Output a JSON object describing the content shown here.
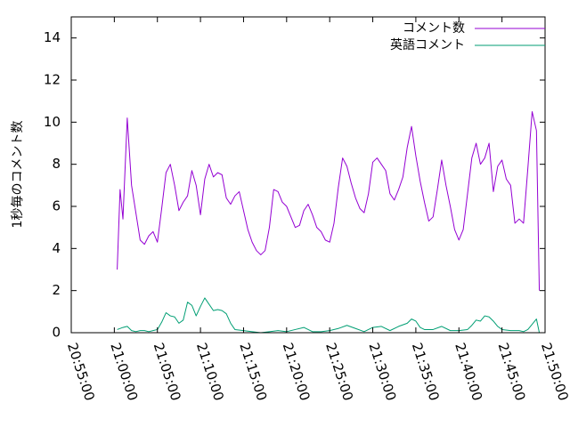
{
  "chart_data": {
    "type": "line",
    "title": "",
    "xlabel": "",
    "ylabel": "1秒毎のコメント数",
    "ylim": [
      0,
      15
    ],
    "yticks": [
      "0",
      "2",
      "4",
      "6",
      "8",
      "10",
      "12",
      "14"
    ],
    "xlim": [
      "20:55:00",
      "21:50:00"
    ],
    "xticks": [
      "20:55:00",
      "21:00:00",
      "21:05:00",
      "21:10:00",
      "21:15:00",
      "21:20:00",
      "21:25:00",
      "21:30:00",
      "21:35:00",
      "21:40:00",
      "21:45:00",
      "21:50:00"
    ],
    "grid": false,
    "legend_position": "top-right",
    "series": [
      {
        "name": "コメント数",
        "color": "#9400d3",
        "points": [
          [
            "21:00:20",
            3.0
          ],
          [
            "21:00:40",
            6.8
          ],
          [
            "21:01:00",
            5.4
          ],
          [
            "21:01:30",
            10.2
          ],
          [
            "21:02:00",
            7.0
          ],
          [
            "21:03:00",
            4.4
          ],
          [
            "21:03:30",
            4.2
          ],
          [
            "21:04:00",
            4.6
          ],
          [
            "21:04:30",
            4.8
          ],
          [
            "21:05:00",
            4.3
          ],
          [
            "21:05:30",
            5.9
          ],
          [
            "21:06:00",
            7.6
          ],
          [
            "21:06:30",
            8.0
          ],
          [
            "21:07:00",
            7.0
          ],
          [
            "21:07:30",
            5.8
          ],
          [
            "21:08:00",
            6.2
          ],
          [
            "21:08:30",
            6.5
          ],
          [
            "21:09:00",
            7.7
          ],
          [
            "21:09:30",
            7.0
          ],
          [
            "21:10:00",
            5.6
          ],
          [
            "21:10:30",
            7.3
          ],
          [
            "21:11:00",
            8.0
          ],
          [
            "21:11:30",
            7.4
          ],
          [
            "21:12:00",
            7.6
          ],
          [
            "21:12:30",
            7.5
          ],
          [
            "21:13:00",
            6.4
          ],
          [
            "21:13:30",
            6.1
          ],
          [
            "21:14:00",
            6.5
          ],
          [
            "21:14:30",
            6.7
          ],
          [
            "21:15:00",
            5.8
          ],
          [
            "21:15:30",
            4.9
          ],
          [
            "21:16:00",
            4.3
          ],
          [
            "21:16:30",
            3.9
          ],
          [
            "21:17:00",
            3.7
          ],
          [
            "21:17:30",
            3.9
          ],
          [
            "21:18:00",
            5.0
          ],
          [
            "21:18:30",
            6.8
          ],
          [
            "21:19:00",
            6.7
          ],
          [
            "21:19:30",
            6.2
          ],
          [
            "21:20:00",
            6.0
          ],
          [
            "21:20:30",
            5.5
          ],
          [
            "21:21:00",
            5.0
          ],
          [
            "21:21:30",
            5.1
          ],
          [
            "21:22:00",
            5.8
          ],
          [
            "21:22:30",
            6.1
          ],
          [
            "21:23:00",
            5.6
          ],
          [
            "21:23:30",
            5.0
          ],
          [
            "21:24:00",
            4.8
          ],
          [
            "21:24:30",
            4.4
          ],
          [
            "21:25:00",
            4.3
          ],
          [
            "21:25:30",
            5.2
          ],
          [
            "21:26:00",
            6.9
          ],
          [
            "21:26:30",
            8.3
          ],
          [
            "21:27:00",
            7.9
          ],
          [
            "21:27:30",
            7.1
          ],
          [
            "21:28:00",
            6.4
          ],
          [
            "21:28:30",
            5.9
          ],
          [
            "21:29:00",
            5.7
          ],
          [
            "21:29:30",
            6.6
          ],
          [
            "21:30:00",
            8.1
          ],
          [
            "21:30:30",
            8.3
          ],
          [
            "21:31:00",
            8.0
          ],
          [
            "21:31:30",
            7.7
          ],
          [
            "21:32:00",
            6.6
          ],
          [
            "21:32:30",
            6.3
          ],
          [
            "21:33:00",
            6.8
          ],
          [
            "21:33:30",
            7.4
          ],
          [
            "21:34:00",
            8.8
          ],
          [
            "21:34:30",
            9.8
          ],
          [
            "21:35:00",
            8.4
          ],
          [
            "21:35:30",
            7.2
          ],
          [
            "21:36:00",
            6.2
          ],
          [
            "21:36:30",
            5.3
          ],
          [
            "21:37:00",
            5.5
          ],
          [
            "21:37:30",
            6.8
          ],
          [
            "21:38:00",
            8.2
          ],
          [
            "21:38:30",
            7.0
          ],
          [
            "21:39:00",
            6.0
          ],
          [
            "21:39:30",
            4.9
          ],
          [
            "21:40:00",
            4.4
          ],
          [
            "21:40:30",
            4.9
          ],
          [
            "21:41:00",
            6.6
          ],
          [
            "21:41:30",
            8.3
          ],
          [
            "21:42:00",
            9.0
          ],
          [
            "21:42:30",
            8.0
          ],
          [
            "21:43:00",
            8.3
          ],
          [
            "21:43:30",
            9.0
          ],
          [
            "21:44:00",
            6.7
          ],
          [
            "21:44:30",
            7.9
          ],
          [
            "21:45:00",
            8.2
          ],
          [
            "21:45:30",
            7.3
          ],
          [
            "21:46:00",
            7.0
          ],
          [
            "21:46:30",
            5.2
          ],
          [
            "21:47:00",
            5.4
          ],
          [
            "21:47:30",
            5.2
          ],
          [
            "21:48:00",
            7.8
          ],
          [
            "21:48:30",
            10.5
          ],
          [
            "21:49:00",
            9.6
          ],
          [
            "21:49:20",
            2.0
          ]
        ]
      },
      {
        "name": "英語コメント",
        "color": "#009e73",
        "points": [
          [
            "21:00:20",
            0.15
          ],
          [
            "21:01:00",
            0.25
          ],
          [
            "21:01:30",
            0.3
          ],
          [
            "21:02:00",
            0.1
          ],
          [
            "21:02:30",
            0.05
          ],
          [
            "21:03:00",
            0.1
          ],
          [
            "21:03:30",
            0.1
          ],
          [
            "21:04:00",
            0.05
          ],
          [
            "21:04:30",
            0.1
          ],
          [
            "21:05:00",
            0.15
          ],
          [
            "21:05:30",
            0.5
          ],
          [
            "21:06:00",
            0.95
          ],
          [
            "21:06:30",
            0.8
          ],
          [
            "21:07:00",
            0.75
          ],
          [
            "21:07:30",
            0.45
          ],
          [
            "21:08:00",
            0.6
          ],
          [
            "21:08:30",
            1.45
          ],
          [
            "21:09:00",
            1.3
          ],
          [
            "21:09:30",
            0.8
          ],
          [
            "21:10:00",
            1.25
          ],
          [
            "21:10:30",
            1.65
          ],
          [
            "21:11:00",
            1.35
          ],
          [
            "21:11:30",
            1.05
          ],
          [
            "21:12:00",
            1.1
          ],
          [
            "21:12:30",
            1.05
          ],
          [
            "21:13:00",
            0.9
          ],
          [
            "21:13:30",
            0.45
          ],
          [
            "21:14:00",
            0.15
          ],
          [
            "21:15:00",
            0.1
          ],
          [
            "21:16:00",
            0.05
          ],
          [
            "21:17:00",
            0.0
          ],
          [
            "21:18:00",
            0.05
          ],
          [
            "21:19:00",
            0.1
          ],
          [
            "21:20:00",
            0.05
          ],
          [
            "21:21:00",
            0.15
          ],
          [
            "21:22:00",
            0.25
          ],
          [
            "21:23:00",
            0.05
          ],
          [
            "21:24:00",
            0.05
          ],
          [
            "21:25:00",
            0.1
          ],
          [
            "21:26:00",
            0.2
          ],
          [
            "21:27:00",
            0.35
          ],
          [
            "21:28:00",
            0.2
          ],
          [
            "21:29:00",
            0.05
          ],
          [
            "21:30:00",
            0.25
          ],
          [
            "21:31:00",
            0.3
          ],
          [
            "21:32:00",
            0.1
          ],
          [
            "21:33:00",
            0.3
          ],
          [
            "21:34:00",
            0.45
          ],
          [
            "21:34:30",
            0.65
          ],
          [
            "21:35:00",
            0.55
          ],
          [
            "21:35:30",
            0.25
          ],
          [
            "21:36:00",
            0.15
          ],
          [
            "21:37:00",
            0.15
          ],
          [
            "21:38:00",
            0.3
          ],
          [
            "21:39:00",
            0.1
          ],
          [
            "21:40:00",
            0.1
          ],
          [
            "21:41:00",
            0.15
          ],
          [
            "21:41:30",
            0.35
          ],
          [
            "21:42:00",
            0.6
          ],
          [
            "21:42:30",
            0.55
          ],
          [
            "21:43:00",
            0.8
          ],
          [
            "21:43:30",
            0.75
          ],
          [
            "21:44:00",
            0.55
          ],
          [
            "21:44:30",
            0.3
          ],
          [
            "21:45:00",
            0.15
          ],
          [
            "21:46:00",
            0.1
          ],
          [
            "21:47:00",
            0.1
          ],
          [
            "21:47:30",
            0.05
          ],
          [
            "21:48:00",
            0.15
          ],
          [
            "21:48:30",
            0.4
          ],
          [
            "21:49:00",
            0.65
          ],
          [
            "21:49:20",
            0.0
          ]
        ]
      }
    ]
  }
}
